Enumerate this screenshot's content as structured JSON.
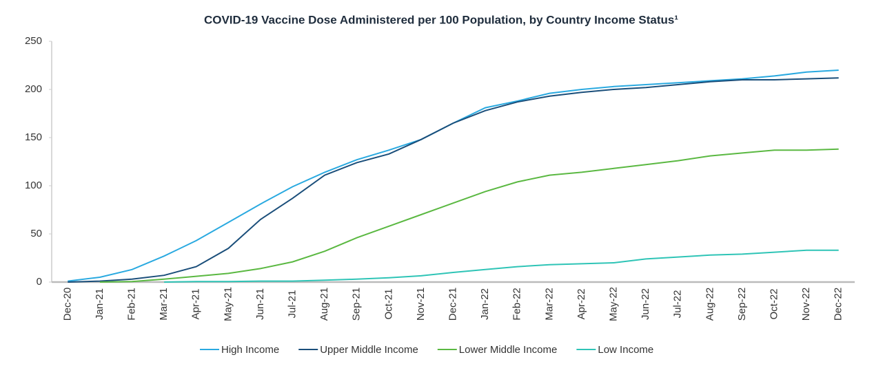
{
  "chart_data": {
    "type": "line",
    "title": "COVID-19 Vaccine Dose Administered per 100 Population, by Country Income Status¹",
    "categories": [
      "Dec-20",
      "Jan-21",
      "Feb-21",
      "Mar-21",
      "Apr-21",
      "May-21",
      "Jun-21",
      "Jul-21",
      "Aug-21",
      "Sep-21",
      "Oct-21",
      "Nov-21",
      "Dec-21",
      "Jan-22",
      "Feb-22",
      "Mar-22",
      "Apr-22",
      "May-22",
      "Jun-22",
      "Jul-22",
      "Aug-22",
      "Sep-22",
      "Oct-22",
      "Nov-22",
      "Dec-22"
    ],
    "series": [
      {
        "name": "High Income",
        "color": "#29a9e0",
        "values": [
          1,
          5,
          13,
          27,
          43,
          62,
          81,
          99,
          114,
          127,
          137,
          148,
          165,
          181,
          188,
          196,
          200,
          203,
          205,
          207,
          209,
          211,
          214,
          218,
          220
        ]
      },
      {
        "name": "Upper Middle Income",
        "color": "#1a4e7a",
        "values": [
          0,
          1,
          3,
          7,
          16,
          35,
          65,
          87,
          111,
          124,
          133,
          148,
          165,
          178,
          187,
          193,
          197,
          200,
          202,
          205,
          208,
          210,
          210,
          211,
          212
        ]
      },
      {
        "name": "Lower Middle Income",
        "color": "#5ab841",
        "values": [
          null,
          0,
          0.5,
          3,
          6,
          9,
          14,
          21,
          32,
          46,
          58,
          70,
          82,
          94,
          104,
          111,
          114,
          118,
          122,
          126,
          131,
          134,
          137,
          137,
          138
        ]
      },
      {
        "name": "Low Income",
        "color": "#2ec4b6",
        "values": [
          null,
          null,
          null,
          0,
          0.5,
          0.5,
          1,
          1,
          2,
          3,
          4.5,
          6.5,
          10,
          13,
          16,
          18,
          19,
          20,
          24,
          26,
          28,
          29,
          31,
          33,
          33
        ]
      }
    ],
    "ylim": [
      0,
      250
    ],
    "yticks": [
      0,
      50,
      100,
      150,
      200,
      250
    ],
    "legend": "bottom"
  }
}
